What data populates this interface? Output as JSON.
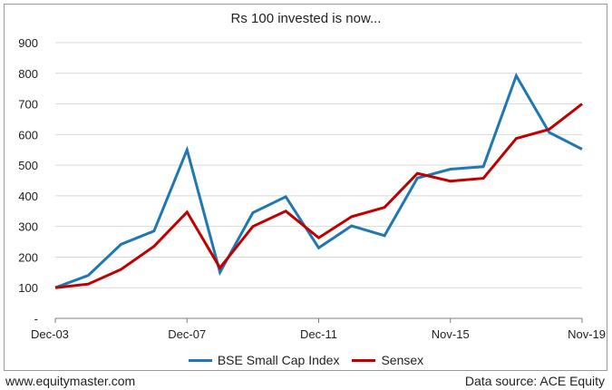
{
  "chart_data": {
    "type": "line",
    "title": "Rs 100 invested is now...",
    "xlabel": "",
    "ylabel": "",
    "ylim": [
      0,
      900
    ],
    "y_ticks": [
      "-",
      "100",
      "200",
      "300",
      "400",
      "500",
      "600",
      "700",
      "800",
      "900"
    ],
    "y_tick_values": [
      0,
      100,
      200,
      300,
      400,
      500,
      600,
      700,
      800,
      900
    ],
    "x_tick_labels": [
      "Dec-03",
      "Dec-07",
      "Dec-11",
      "Nov-15",
      "Nov-19"
    ],
    "x_tick_indices": [
      0,
      4,
      8,
      12,
      16
    ],
    "grid": "horizontal",
    "legend_position": "bottom",
    "series": [
      {
        "name": "BSE Small Cap Index",
        "color": "#1f77b4",
        "values": [
          100,
          140,
          242,
          285,
          550,
          150,
          345,
          397,
          230,
          302,
          270,
          458,
          487,
          495,
          792,
          607,
          552
        ]
      },
      {
        "name": "Sensex",
        "color": "#c00000",
        "values": [
          100,
          112,
          160,
          235,
          347,
          165,
          300,
          350,
          263,
          332,
          362,
          473,
          448,
          457,
          587,
          617,
          700
        ]
      }
    ]
  },
  "footer": {
    "website": "www.equitymaster.com",
    "source": "Data source: ACE Equity"
  }
}
